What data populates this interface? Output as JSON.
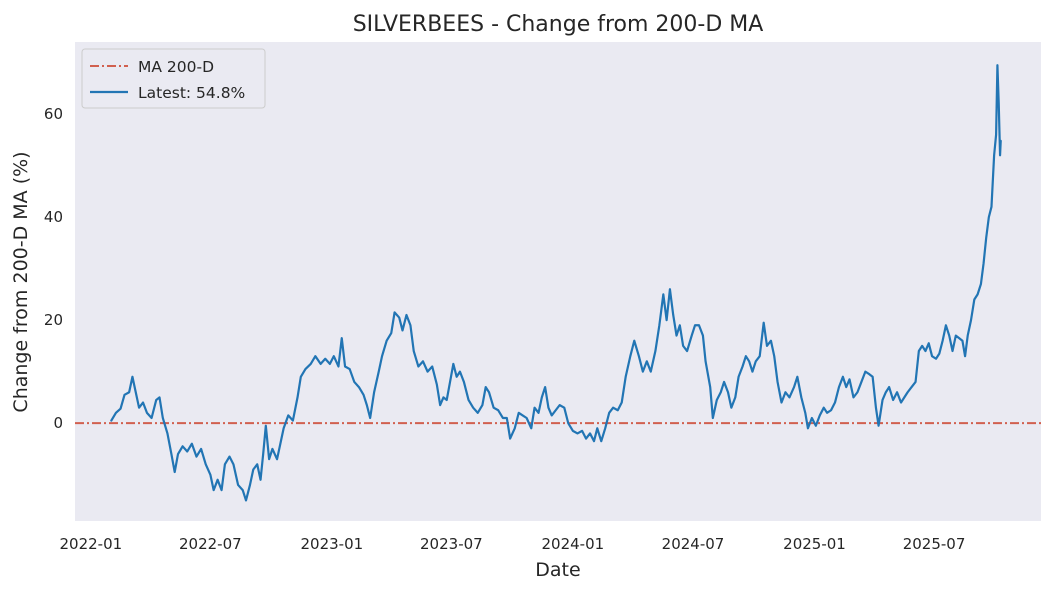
{
  "chart_data": {
    "type": "line",
    "title": "SILVERBEES - Change from 200-D MA",
    "xlabel": "Date",
    "ylabel": "Change from 200-D MA (%)",
    "x_range": [
      "2021-12-08",
      "2025-12-10"
    ],
    "ylim": [
      -19,
      74
    ],
    "grid": false,
    "legend_position": "top-left",
    "x_ticks": [
      "2022-01",
      "2022-07",
      "2023-01",
      "2023-07",
      "2024-01",
      "2024-07",
      "2025-01",
      "2025-07"
    ],
    "y_ticks": [
      0,
      20,
      40,
      60
    ],
    "reference_line": {
      "name": "MA 200-D",
      "value": 0,
      "color": "#d1604f",
      "style": "dash-dot"
    },
    "series": [
      {
        "name": "Latest: 54.8%",
        "color": "#2275b4",
        "points": [
          [
            "2022-02-01",
            0.5
          ],
          [
            "2022-02-08",
            2.0
          ],
          [
            "2022-02-15",
            2.8
          ],
          [
            "2022-02-21",
            5.5
          ],
          [
            "2022-02-28",
            6.0
          ],
          [
            "2022-03-05",
            9.0
          ],
          [
            "2022-03-10",
            6.0
          ],
          [
            "2022-03-15",
            3.0
          ],
          [
            "2022-03-21",
            4.0
          ],
          [
            "2022-03-27",
            2.0
          ],
          [
            "2022-04-03",
            1.0
          ],
          [
            "2022-04-10",
            4.5
          ],
          [
            "2022-04-15",
            5.0
          ],
          [
            "2022-04-20",
            1.0
          ],
          [
            "2022-04-27",
            -2.0
          ],
          [
            "2022-05-03",
            -6.0
          ],
          [
            "2022-05-08",
            -9.5
          ],
          [
            "2022-05-13",
            -6.0
          ],
          [
            "2022-05-20",
            -4.5
          ],
          [
            "2022-05-27",
            -5.5
          ],
          [
            "2022-06-03",
            -4.0
          ],
          [
            "2022-06-10",
            -6.5
          ],
          [
            "2022-06-17",
            -5.0
          ],
          [
            "2022-06-24",
            -8.0
          ],
          [
            "2022-07-01",
            -10.0
          ],
          [
            "2022-07-06",
            -13.0
          ],
          [
            "2022-07-12",
            -11.0
          ],
          [
            "2022-07-18",
            -13.0
          ],
          [
            "2022-07-23",
            -8.0
          ],
          [
            "2022-07-30",
            -6.5
          ],
          [
            "2022-08-05",
            -8.0
          ],
          [
            "2022-08-12",
            -12.0
          ],
          [
            "2022-08-19",
            -13.0
          ],
          [
            "2022-08-24",
            -15.0
          ],
          [
            "2022-08-30",
            -12.0
          ],
          [
            "2022-09-04",
            -9.0
          ],
          [
            "2022-09-10",
            -8.0
          ],
          [
            "2022-09-15",
            -11.0
          ],
          [
            "2022-09-19",
            -6.0
          ],
          [
            "2022-09-23",
            -0.5
          ],
          [
            "2022-09-28",
            -7.0
          ],
          [
            "2022-10-03",
            -5.0
          ],
          [
            "2022-10-10",
            -7.0
          ],
          [
            "2022-10-15",
            -4.0
          ],
          [
            "2022-10-20",
            -1.0
          ],
          [
            "2022-10-27",
            1.5
          ],
          [
            "2022-11-03",
            0.5
          ],
          [
            "2022-11-10",
            5.0
          ],
          [
            "2022-11-15",
            9.0
          ],
          [
            "2022-11-22",
            10.5
          ],
          [
            "2022-11-30",
            11.5
          ],
          [
            "2022-12-07",
            13.0
          ],
          [
            "2022-12-15",
            11.5
          ],
          [
            "2022-12-22",
            12.5
          ],
          [
            "2022-12-29",
            11.5
          ],
          [
            "2023-01-04",
            13.0
          ],
          [
            "2023-01-11",
            11.0
          ],
          [
            "2023-01-16",
            16.5
          ],
          [
            "2023-01-21",
            11.0
          ],
          [
            "2023-01-28",
            10.5
          ],
          [
            "2023-02-04",
            8.0
          ],
          [
            "2023-02-11",
            7.0
          ],
          [
            "2023-02-18",
            5.5
          ],
          [
            "2023-02-23",
            3.5
          ],
          [
            "2023-02-28",
            1.0
          ],
          [
            "2023-03-06",
            6.0
          ],
          [
            "2023-03-13",
            10.0
          ],
          [
            "2023-03-18",
            13.0
          ],
          [
            "2023-03-25",
            16.0
          ],
          [
            "2023-04-01",
            17.5
          ],
          [
            "2023-04-06",
            21.5
          ],
          [
            "2023-04-13",
            20.5
          ],
          [
            "2023-04-18",
            18.0
          ],
          [
            "2023-04-24",
            21.0
          ],
          [
            "2023-04-30",
            19.0
          ],
          [
            "2023-05-05",
            14.0
          ],
          [
            "2023-05-12",
            11.0
          ],
          [
            "2023-05-19",
            12.0
          ],
          [
            "2023-05-26",
            10.0
          ],
          [
            "2023-06-02",
            11.0
          ],
          [
            "2023-06-09",
            7.5
          ],
          [
            "2023-06-14",
            3.5
          ],
          [
            "2023-06-19",
            5.0
          ],
          [
            "2023-06-24",
            4.5
          ],
          [
            "2023-06-29",
            8.0
          ],
          [
            "2023-07-04",
            11.5
          ],
          [
            "2023-07-09",
            9.0
          ],
          [
            "2023-07-14",
            10.0
          ],
          [
            "2023-07-20",
            8.0
          ],
          [
            "2023-07-27",
            4.5
          ],
          [
            "2023-08-03",
            3.0
          ],
          [
            "2023-08-10",
            2.0
          ],
          [
            "2023-08-17",
            3.5
          ],
          [
            "2023-08-22",
            7.0
          ],
          [
            "2023-08-27",
            6.0
          ],
          [
            "2023-09-03",
            3.0
          ],
          [
            "2023-09-10",
            2.5
          ],
          [
            "2023-09-17",
            1.0
          ],
          [
            "2023-09-23",
            1.0
          ],
          [
            "2023-09-28",
            -3.0
          ],
          [
            "2023-10-05",
            -1.0
          ],
          [
            "2023-10-11",
            2.0
          ],
          [
            "2023-10-17",
            1.5
          ],
          [
            "2023-10-23",
            1.0
          ],
          [
            "2023-10-30",
            -1.0
          ],
          [
            "2023-11-04",
            3.0
          ],
          [
            "2023-11-10",
            2.0
          ],
          [
            "2023-11-15",
            5.0
          ],
          [
            "2023-11-20",
            7.0
          ],
          [
            "2023-11-25",
            3.0
          ],
          [
            "2023-11-30",
            1.5
          ],
          [
            "2023-12-06",
            2.5
          ],
          [
            "2023-12-12",
            3.5
          ],
          [
            "2023-12-19",
            3.0
          ],
          [
            "2023-12-25",
            0.0
          ],
          [
            "2024-01-01",
            -1.5
          ],
          [
            "2024-01-08",
            -2.0
          ],
          [
            "2024-01-15",
            -1.5
          ],
          [
            "2024-01-21",
            -3.0
          ],
          [
            "2024-01-27",
            -2.0
          ],
          [
            "2024-02-02",
            -3.5
          ],
          [
            "2024-02-07",
            -1.0
          ],
          [
            "2024-02-13",
            -3.5
          ],
          [
            "2024-02-19",
            -1.0
          ],
          [
            "2024-02-25",
            2.0
          ],
          [
            "2024-03-02",
            3.0
          ],
          [
            "2024-03-09",
            2.5
          ],
          [
            "2024-03-15",
            4.0
          ],
          [
            "2024-03-21",
            9.0
          ],
          [
            "2024-03-28",
            13.0
          ],
          [
            "2024-04-03",
            16.0
          ],
          [
            "2024-04-10",
            13.0
          ],
          [
            "2024-04-16",
            10.0
          ],
          [
            "2024-04-22",
            12.0
          ],
          [
            "2024-04-28",
            10.0
          ],
          [
            "2024-05-05",
            14.0
          ],
          [
            "2024-05-11",
            19.0
          ],
          [
            "2024-05-17",
            25.0
          ],
          [
            "2024-05-22",
            20.0
          ],
          [
            "2024-05-27",
            26.0
          ],
          [
            "2024-06-01",
            21.0
          ],
          [
            "2024-06-06",
            17.0
          ],
          [
            "2024-06-11",
            19.0
          ],
          [
            "2024-06-16",
            15.0
          ],
          [
            "2024-06-22",
            14.0
          ],
          [
            "2024-06-29",
            17.0
          ],
          [
            "2024-07-04",
            19.0
          ],
          [
            "2024-07-10",
            19.0
          ],
          [
            "2024-07-16",
            17.0
          ],
          [
            "2024-07-20",
            12.0
          ],
          [
            "2024-07-27",
            7.0
          ],
          [
            "2024-07-31",
            1.0
          ],
          [
            "2024-08-06",
            4.5
          ],
          [
            "2024-08-12",
            6.0
          ],
          [
            "2024-08-17",
            8.0
          ],
          [
            "2024-08-23",
            6.0
          ],
          [
            "2024-08-28",
            3.0
          ],
          [
            "2024-09-03",
            5.0
          ],
          [
            "2024-09-08",
            9.0
          ],
          [
            "2024-09-14",
            11.0
          ],
          [
            "2024-09-19",
            13.0
          ],
          [
            "2024-09-24",
            12.0
          ],
          [
            "2024-09-29",
            10.0
          ],
          [
            "2024-10-04",
            12.0
          ],
          [
            "2024-10-10",
            13.0
          ],
          [
            "2024-10-16",
            19.5
          ],
          [
            "2024-10-21",
            15.0
          ],
          [
            "2024-10-27",
            16.0
          ],
          [
            "2024-11-01",
            13.0
          ],
          [
            "2024-11-06",
            8.0
          ],
          [
            "2024-11-12",
            4.0
          ],
          [
            "2024-11-18",
            6.0
          ],
          [
            "2024-11-24",
            5.0
          ],
          [
            "2024-12-01",
            7.0
          ],
          [
            "2024-12-06",
            9.0
          ],
          [
            "2024-12-12",
            5.0
          ],
          [
            "2024-12-18",
            2.0
          ],
          [
            "2024-12-22",
            -1.0
          ],
          [
            "2024-12-28",
            1.0
          ],
          [
            "2025-01-03",
            -0.5
          ],
          [
            "2025-01-09",
            1.5
          ],
          [
            "2025-01-15",
            3.0
          ],
          [
            "2025-01-20",
            2.0
          ],
          [
            "2025-01-26",
            2.5
          ],
          [
            "2025-02-01",
            4.0
          ],
          [
            "2025-02-07",
            7.0
          ],
          [
            "2025-02-13",
            9.0
          ],
          [
            "2025-02-18",
            7.0
          ],
          [
            "2025-02-23",
            8.5
          ],
          [
            "2025-03-01",
            5.0
          ],
          [
            "2025-03-07",
            6.0
          ],
          [
            "2025-03-13",
            8.0
          ],
          [
            "2025-03-19",
            10.0
          ],
          [
            "2025-03-25",
            9.5
          ],
          [
            "2025-03-30",
            9.0
          ],
          [
            "2025-04-04",
            3.0
          ],
          [
            "2025-04-08",
            -0.5
          ],
          [
            "2025-04-14",
            4.5
          ],
          [
            "2025-04-19",
            6.0
          ],
          [
            "2025-04-24",
            7.0
          ],
          [
            "2025-04-30",
            4.5
          ],
          [
            "2025-05-06",
            6.0
          ],
          [
            "2025-05-12",
            4.0
          ],
          [
            "2025-05-17",
            5.0
          ],
          [
            "2025-05-22",
            6.0
          ],
          [
            "2025-05-28",
            7.0
          ],
          [
            "2025-06-03",
            8.0
          ],
          [
            "2025-06-08",
            14.0
          ],
          [
            "2025-06-13",
            15.0
          ],
          [
            "2025-06-18",
            14.0
          ],
          [
            "2025-06-23",
            15.5
          ],
          [
            "2025-06-28",
            13.0
          ],
          [
            "2025-07-04",
            12.5
          ],
          [
            "2025-07-09",
            13.5
          ],
          [
            "2025-07-14",
            16.0
          ],
          [
            "2025-07-19",
            19.0
          ],
          [
            "2025-07-24",
            17.0
          ],
          [
            "2025-07-29",
            14.0
          ],
          [
            "2025-08-03",
            17.0
          ],
          [
            "2025-08-08",
            16.5
          ],
          [
            "2025-08-13",
            16.0
          ],
          [
            "2025-08-17",
            13.0
          ],
          [
            "2025-08-21",
            17.0
          ],
          [
            "2025-08-26",
            20.0
          ],
          [
            "2025-08-31",
            24.0
          ],
          [
            "2025-09-05",
            25.0
          ],
          [
            "2025-09-10",
            27.0
          ],
          [
            "2025-09-14",
            31.0
          ],
          [
            "2025-09-18",
            36.0
          ],
          [
            "2025-09-22",
            40.0
          ],
          [
            "2025-09-26",
            42.0
          ],
          [
            "2025-09-30",
            52.0
          ],
          [
            "2025-10-03",
            56.0
          ],
          [
            "2025-10-05",
            69.5
          ],
          [
            "2025-10-07",
            62.0
          ],
          [
            "2025-10-09",
            52.0
          ],
          [
            "2025-10-10",
            54.8
          ]
        ]
      }
    ]
  }
}
